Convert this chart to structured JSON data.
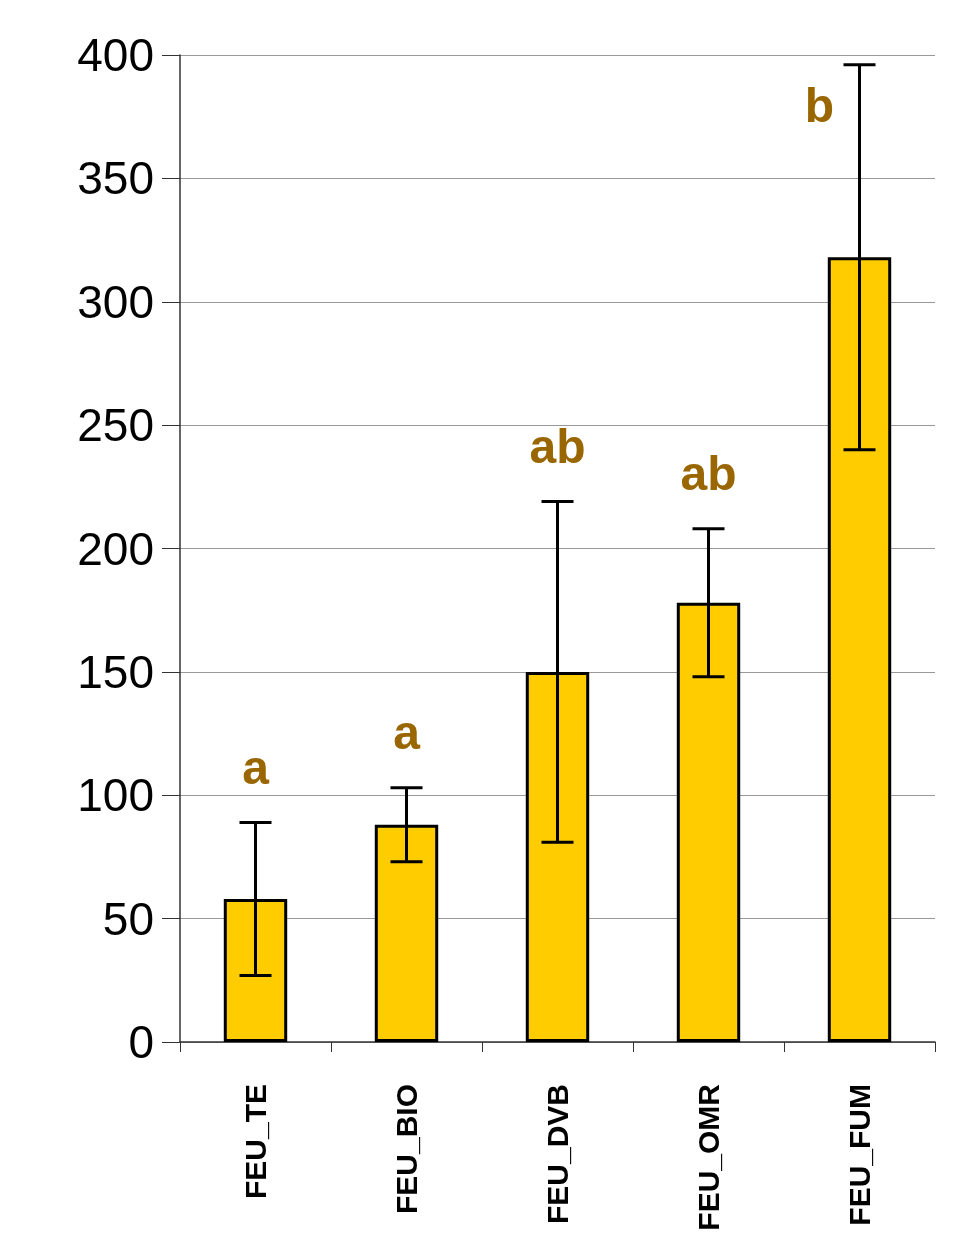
{
  "chart_data": {
    "type": "bar",
    "categories": [
      "FEU_TE",
      "FEU_BIO",
      "FEU_DVB",
      "FEU_OMR",
      "FEU_FUM"
    ],
    "values": [
      58,
      88,
      150,
      178,
      318
    ],
    "errors": [
      31,
      15,
      69,
      30,
      78
    ],
    "color": "#ffcc00",
    "ylim": [
      0,
      400
    ],
    "yticks": [
      0,
      50,
      100,
      150,
      200,
      250,
      300,
      350,
      400
    ],
    "grid": "y",
    "annotations": [
      "a",
      "a",
      "ab",
      "ab",
      "b"
    ]
  }
}
